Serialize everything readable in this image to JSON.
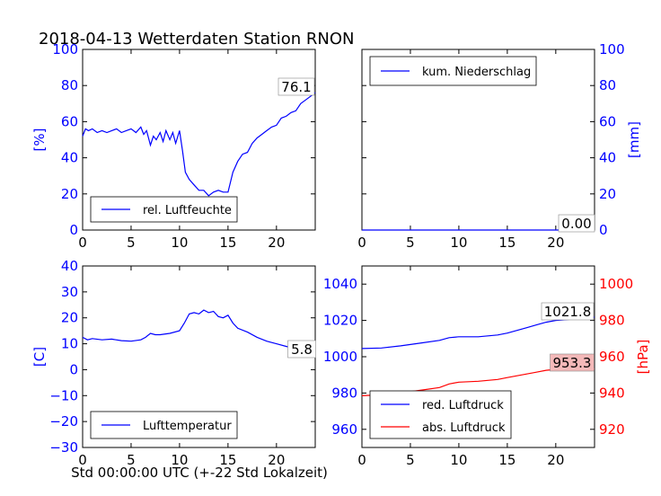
{
  "title": "2018-04-13 Wetterdaten Station RNON",
  "xlabel": "Std 00:00:00 UTC (+-22 Std Lokalzeit)",
  "colors": {
    "blue": "#0000ff",
    "red": "#ff0000",
    "black": "#000000"
  },
  "chart_data": [
    {
      "type": "line",
      "panel": "top-left",
      "ylabel": "[%]",
      "xlim": [
        0,
        24
      ],
      "ylim": [
        0,
        100
      ],
      "xticks": [
        "0",
        "5",
        "10",
        "15",
        "20"
      ],
      "yticks": [
        "0",
        "20",
        "40",
        "60",
        "80",
        "100"
      ],
      "legend": "bottom-left",
      "grid": false,
      "series": [
        {
          "name": "rel. Luftfeuchte",
          "color": "#0000ff",
          "x": [
            0,
            0.3,
            0.6,
            1,
            1.5,
            2,
            2.5,
            3,
            3.5,
            4,
            4.5,
            5,
            5.5,
            6,
            6.3,
            6.6,
            7,
            7.3,
            7.6,
            8,
            8.3,
            8.6,
            9,
            9.3,
            9.6,
            10,
            10.3,
            10.6,
            11,
            11.5,
            12,
            12.5,
            13,
            13.5,
            14,
            14.5,
            15,
            15.5,
            16,
            16.5,
            17,
            17.5,
            18,
            18.5,
            19,
            19.5,
            20,
            20.5,
            21,
            21.5,
            22,
            22.5,
            23,
            23.5,
            24
          ],
          "y": [
            52,
            56,
            55,
            56,
            54,
            55,
            54,
            55,
            56,
            54,
            55,
            56,
            54,
            57,
            53,
            55,
            47,
            52,
            50,
            54,
            49,
            55,
            50,
            54,
            48,
            55,
            44,
            32,
            28,
            25,
            22,
            22,
            19,
            21,
            22,
            21,
            21,
            32,
            38,
            42,
            43,
            48,
            51,
            53,
            55,
            57,
            58,
            62,
            63,
            65,
            66,
            70,
            72,
            74,
            76.1
          ]
        }
      ],
      "annotations": [
        {
          "text": "76.1"
        }
      ]
    },
    {
      "type": "line",
      "panel": "top-right",
      "ylabel": "[mm]",
      "xlim": [
        0,
        24
      ],
      "ylim": [
        0,
        100
      ],
      "xticks": [
        "0",
        "5",
        "10",
        "15",
        "20"
      ],
      "yticks": [
        "0",
        "20",
        "40",
        "60",
        "80",
        "100"
      ],
      "legend": "top-left",
      "grid": false,
      "series": [
        {
          "name": "kum. Niederschlag",
          "color": "#0000ff",
          "x": [
            0,
            24
          ],
          "y": [
            0,
            0
          ]
        }
      ],
      "annotations": [
        {
          "text": "0.00"
        }
      ]
    },
    {
      "type": "line",
      "panel": "bottom-left",
      "ylabel": "[C]",
      "xlim": [
        0,
        24
      ],
      "ylim": [
        -30,
        40
      ],
      "xticks": [
        "0",
        "5",
        "10",
        "15",
        "20"
      ],
      "yticks": [
        "−30",
        "−20",
        "−10",
        "0",
        "10",
        "20",
        "30",
        "40"
      ],
      "legend": "bottom-left",
      "grid": false,
      "series": [
        {
          "name": "Lufttemperatur",
          "color": "#0000ff",
          "x": [
            0,
            0.5,
            1,
            2,
            3,
            4,
            5,
            6,
            6.5,
            7,
            7.5,
            8,
            9,
            10,
            10.5,
            11,
            11.5,
            12,
            12.5,
            13,
            13.5,
            14,
            14.5,
            15,
            15.5,
            16,
            17,
            18,
            19,
            20,
            21,
            22,
            23,
            24
          ],
          "y": [
            12.5,
            11.5,
            12,
            11.5,
            11.8,
            11.2,
            11,
            11.5,
            12.5,
            14,
            13.5,
            13.5,
            14,
            15,
            18,
            21.5,
            22,
            21.5,
            23,
            22,
            22.5,
            20.5,
            20,
            21,
            18,
            16,
            14.5,
            12.5,
            11,
            10,
            9,
            8,
            7,
            5.8
          ]
        }
      ],
      "annotations": [
        {
          "text": "5.8"
        }
      ]
    },
    {
      "type": "line",
      "panel": "bottom-right",
      "ylabel_right": "[hPa]",
      "xlim": [
        0,
        24
      ],
      "ylim_left": [
        950,
        1050
      ],
      "ylim_right": [
        910,
        1010
      ],
      "xticks": [
        "0",
        "5",
        "10",
        "15",
        "20"
      ],
      "yticks_left": [
        "960",
        "980",
        "1000",
        "1020",
        "1040"
      ],
      "yticks_right": [
        "920",
        "940",
        "960",
        "980",
        "1000"
      ],
      "legend": "bottom-left",
      "grid": false,
      "series": [
        {
          "name": "red. Luftdruck",
          "color": "#0000ff",
          "axis": "left",
          "x": [
            0,
            2,
            4,
            6,
            8,
            9,
            10,
            12,
            14,
            15,
            16,
            17,
            18,
            19,
            20,
            22,
            24
          ],
          "y": [
            1004.5,
            1004.8,
            1006,
            1007.5,
            1009,
            1010.5,
            1011,
            1011,
            1012,
            1013,
            1014.5,
            1016,
            1017.5,
            1019,
            1020,
            1020.8,
            1021.8
          ]
        },
        {
          "name": "abs. Luftdruck",
          "color": "#ff0000",
          "axis": "right",
          "x": [
            0,
            2,
            4,
            6,
            8,
            9,
            10,
            12,
            14,
            15,
            16,
            17,
            18,
            19,
            20,
            22,
            24
          ],
          "y": [
            938.5,
            939,
            940,
            941.5,
            943,
            945,
            946,
            946.5,
            947.5,
            948.5,
            949.5,
            950.5,
            951.5,
            952.5,
            953,
            953.2,
            953.3
          ]
        }
      ],
      "annotations": [
        {
          "text": "1021.8",
          "axis": "left"
        },
        {
          "text": "953.3",
          "axis": "right",
          "highlight": "#f4b9b9"
        }
      ]
    }
  ]
}
